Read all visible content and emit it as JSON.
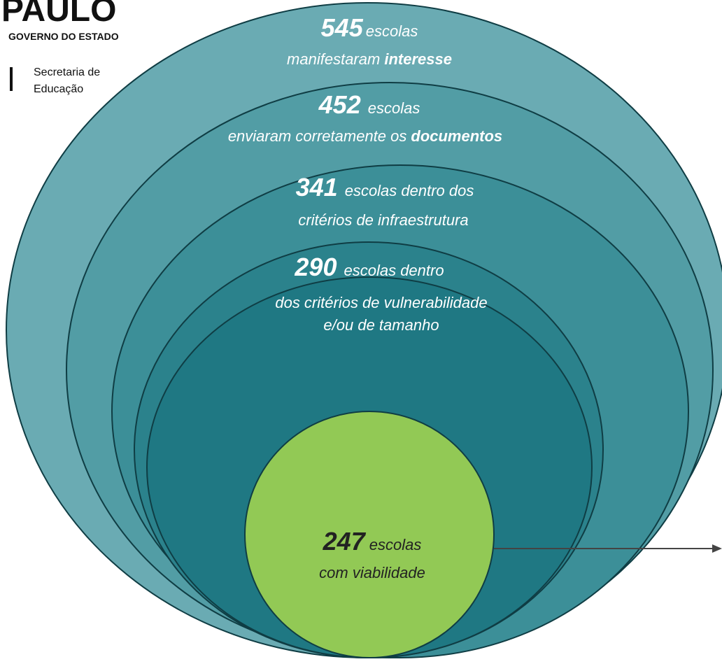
{
  "logo": {
    "name": "PAULO",
    "subtitle": "GOVERNO DO ESTADO",
    "department": [
      "Secretaria de",
      "Educação"
    ]
  },
  "levels": [
    {
      "number": "545",
      "label": "escolas",
      "detail": "manifestaram",
      "emphasis": "interesse"
    },
    {
      "number": "452",
      "label": "escolas",
      "detail": "enviaram corretamente os",
      "emphasis": "documentos"
    },
    {
      "number": "341",
      "label": "escolas dentro dos",
      "lines": [
        "critérios de infraestrutura"
      ]
    },
    {
      "number": "290",
      "label": "escolas dentro",
      "lines": [
        "dos critérios de vulnerabilidade",
        "e/ou de tamanho"
      ]
    },
    {
      "number": "247",
      "label": "escolas",
      "lines": [
        "com viabilidade"
      ]
    }
  ]
}
